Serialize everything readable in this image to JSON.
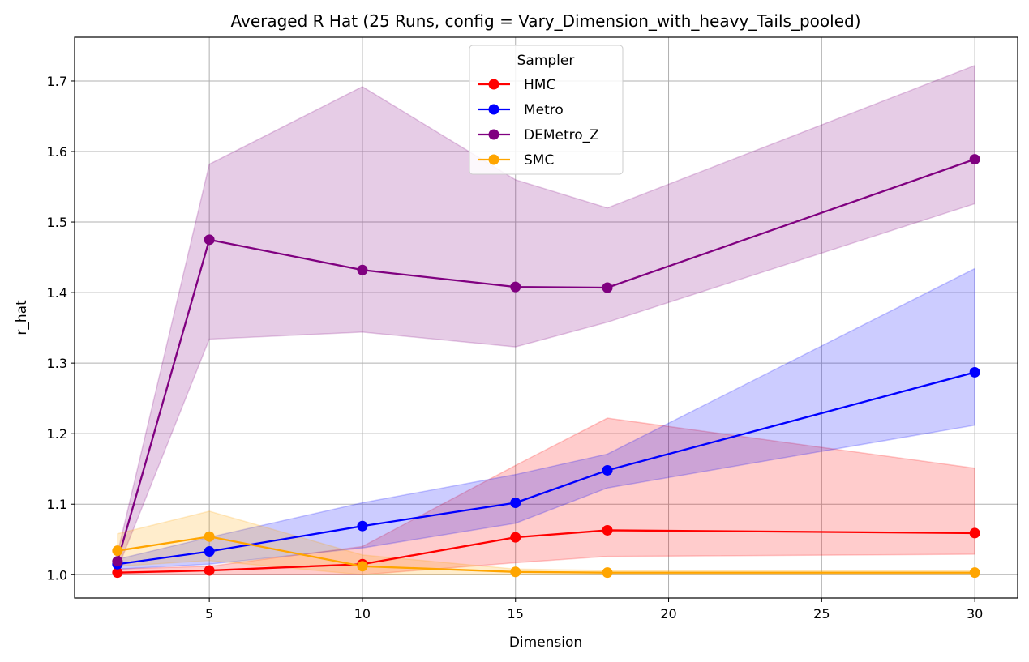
{
  "chart_data": {
    "type": "line",
    "title": "Averaged R Hat (25 Runs, config = Vary_Dimension_with_heavy_Tails_pooled)",
    "xlabel": "Dimension",
    "ylabel": "r_hat",
    "xlim": [
      0.6,
      31.4
    ],
    "ylim": [
      0.967,
      1.762
    ],
    "xticks": [
      5,
      10,
      15,
      20,
      25,
      30
    ],
    "yticks": [
      1.0,
      1.1,
      1.2,
      1.3,
      1.4,
      1.5,
      1.6,
      1.7
    ],
    "ytick_labels": [
      "1.0",
      "1.1",
      "1.2",
      "1.3",
      "1.4",
      "1.5",
      "1.6",
      "1.7"
    ],
    "grid": true,
    "legend": {
      "title": "Sampler",
      "position": "top-center"
    },
    "x": [
      2,
      5,
      10,
      15,
      18,
      30
    ],
    "series": [
      {
        "name": "HMC",
        "color": "#ff0000",
        "values": [
          1.003,
          1.006,
          1.015,
          1.053,
          1.063,
          1.059
        ],
        "lower": [
          1.0,
          1.0,
          1.0,
          1.017,
          1.026,
          1.029
        ],
        "upper": [
          1.008,
          1.012,
          1.04,
          1.155,
          1.222,
          1.151
        ]
      },
      {
        "name": "Metro",
        "color": "#0000ff",
        "values": [
          1.015,
          1.033,
          1.069,
          1.102,
          1.148,
          1.287
        ],
        "lower": [
          1.008,
          1.015,
          1.038,
          1.073,
          1.123,
          1.212
        ],
        "upper": [
          1.022,
          1.053,
          1.102,
          1.142,
          1.171,
          1.434
        ]
      },
      {
        "name": "DEMetro_Z",
        "color": "#800080",
        "values": [
          1.019,
          1.475,
          1.432,
          1.408,
          1.407,
          1.589
        ],
        "lower": [
          1.008,
          1.334,
          1.344,
          1.323,
          1.358,
          1.526
        ],
        "upper": [
          1.03,
          1.582,
          1.692,
          1.56,
          1.52,
          1.722
        ]
      },
      {
        "name": "SMC",
        "color": "#ffa500",
        "values": [
          1.034,
          1.054,
          1.012,
          1.004,
          1.003,
          1.003
        ],
        "lower": [
          1.012,
          1.02,
          1.0,
          1.0,
          1.0,
          1.0
        ],
        "upper": [
          1.058,
          1.09,
          1.028,
          1.008,
          1.006,
          1.006
        ]
      }
    ]
  }
}
